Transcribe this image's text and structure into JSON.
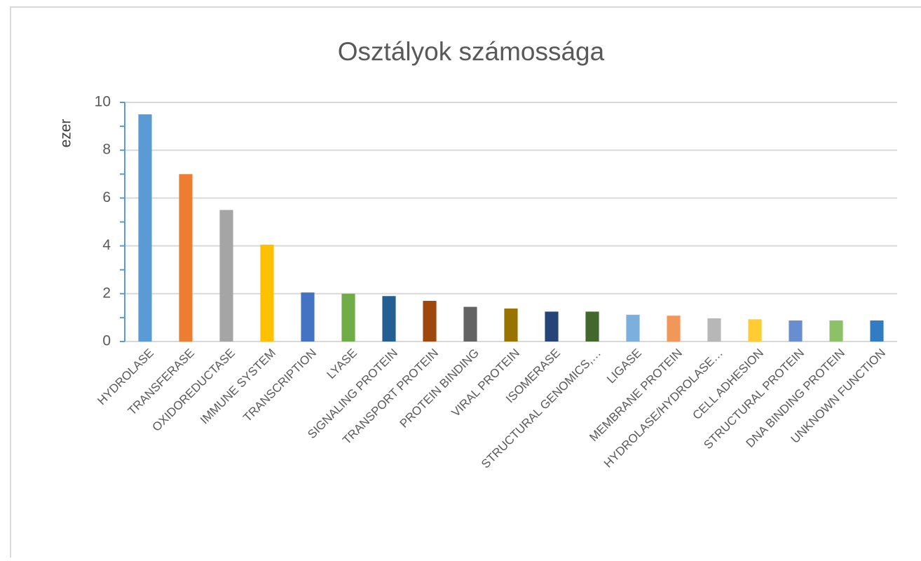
{
  "chart_data": {
    "type": "bar",
    "title": "Osztályok számossága",
    "y_label": "ezer",
    "categories": [
      "HYDROLASE",
      "TRANSFERASE",
      "OXIDOREDUCTASE",
      "IMMUNE SYSTEM",
      "TRANSCRIPTION",
      "LYASE",
      "SIGNALING PROTEIN",
      "TRANSPORT PROTEIN",
      "PROTEIN BINDING",
      "VIRAL PROTEIN",
      "ISOMERASE",
      "STRUCTURAL GENOMICS,…",
      "LIGASE",
      "MEMBRANE PROTEIN",
      "HYDROLASE/HYDROLASE…",
      "CELL ADHESION",
      "STRUCTURAL PROTEIN",
      "DNA BINDING PROTEIN",
      "UNKNOWN FUNCTION"
    ],
    "values": [
      9.5,
      7.0,
      5.5,
      4.05,
      2.05,
      2.0,
      1.9,
      1.7,
      1.45,
      1.38,
      1.25,
      1.25,
      1.12,
      1.08,
      0.97,
      0.93,
      0.88,
      0.88,
      0.88
    ],
    "colors": [
      "#5b9bd5",
      "#ed7d31",
      "#a5a5a5",
      "#ffc000",
      "#4472c4",
      "#70ad47",
      "#255e91",
      "#9e480e",
      "#636363",
      "#997300",
      "#264478",
      "#43682b",
      "#7cafdd",
      "#f1975a",
      "#b7b7b7",
      "#ffcd33",
      "#698ed0",
      "#8cc168",
      "#327dc2"
    ],
    "ylim": [
      0,
      10
    ],
    "yticks": [
      0,
      2,
      4,
      6,
      8,
      10
    ],
    "minor_yticks": [
      1,
      3,
      5,
      7,
      9
    ],
    "grid": true
  }
}
